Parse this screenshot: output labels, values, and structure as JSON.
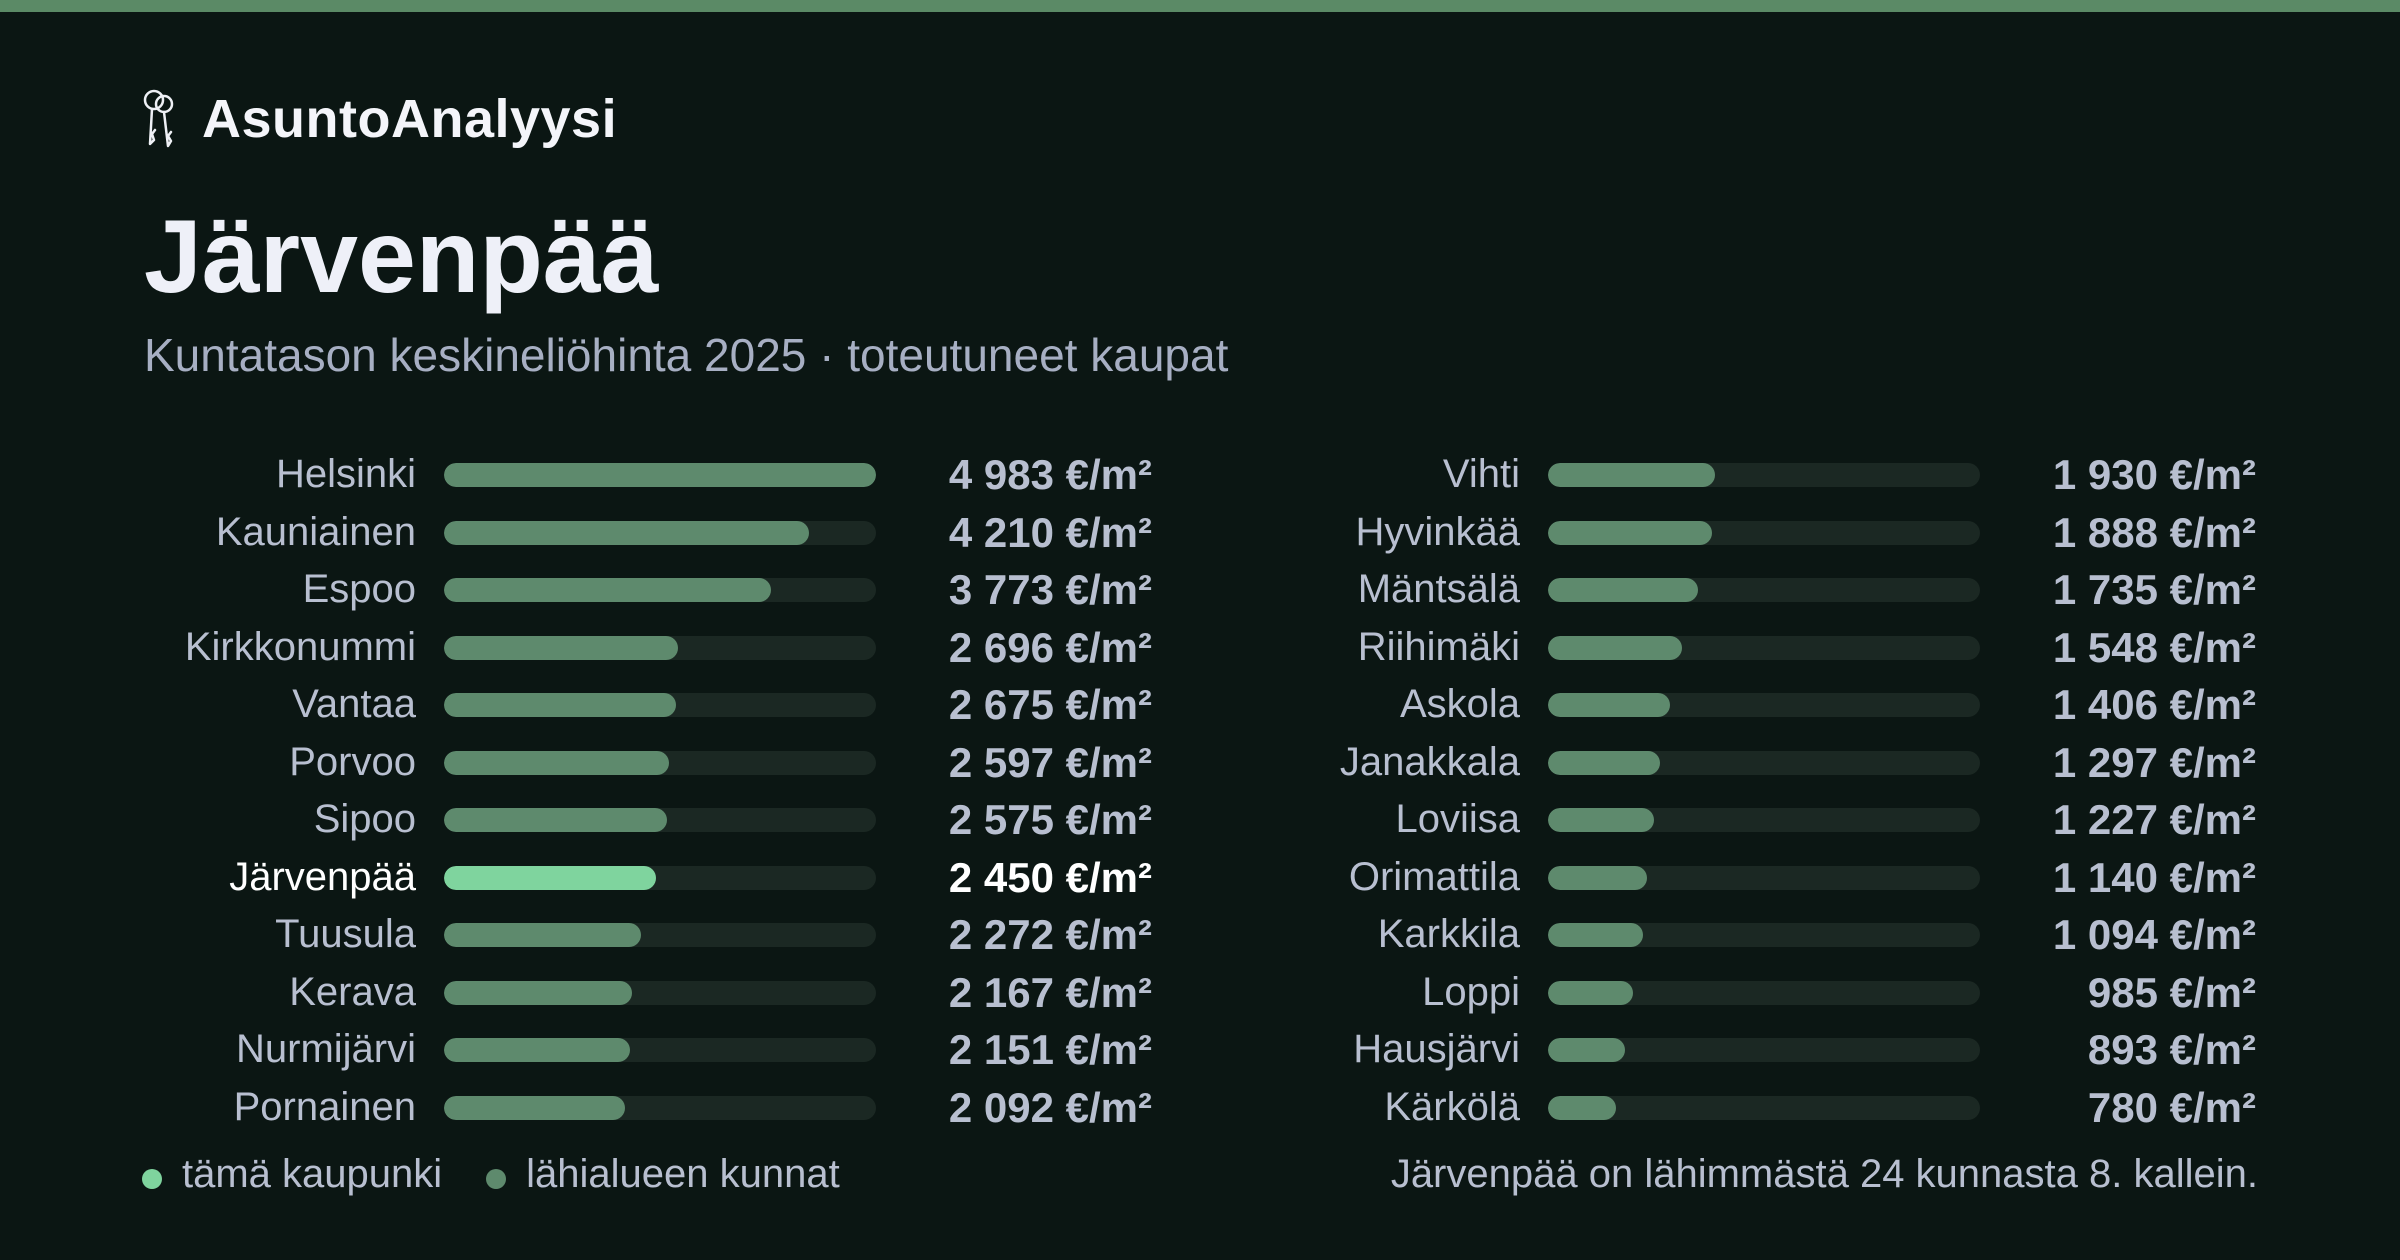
{
  "brand": {
    "name": "AsuntoAnalyysi",
    "icon": "keys-icon"
  },
  "title": "Järvenpää",
  "subtitle": "Kuntatason keskineliöhinta 2025 · toteutuneet kaupat",
  "colors": {
    "accent": "#5b8a66",
    "highlight": "#7fd49e",
    "bar": "#5e8a6d",
    "track": "#1b2823",
    "background": "#0b1613"
  },
  "legend": {
    "this_city": "tämä kaupunki",
    "nearby": "lähialueen kunnat"
  },
  "footnote": "Järvenpää on lähimmästä 24 kunnasta 8. kallein.",
  "chart_data": {
    "type": "bar",
    "orientation": "horizontal",
    "unit": "€/m²",
    "xlim": [
      0,
      4983
    ],
    "highlight": "Järvenpää",
    "categories": [
      "Helsinki",
      "Kauniainen",
      "Espoo",
      "Kirkkonummi",
      "Vantaa",
      "Porvoo",
      "Sipoo",
      "Järvenpää",
      "Tuusula",
      "Kerava",
      "Nurmijärvi",
      "Pornainen",
      "Vihti",
      "Hyvinkää",
      "Mäntsälä",
      "Riihimäki",
      "Askola",
      "Janakkala",
      "Loviisa",
      "Orimattila",
      "Karkkila",
      "Loppi",
      "Hausjärvi",
      "Kärkölä"
    ],
    "values": [
      4983,
      4210,
      3773,
      2696,
      2675,
      2597,
      2575,
      2450,
      2272,
      2167,
      2151,
      2092,
      1930,
      1888,
      1735,
      1548,
      1406,
      1297,
      1227,
      1140,
      1094,
      985,
      893,
      780
    ],
    "labels": [
      "4 983 €/m²",
      "4 210 €/m²",
      "3 773 €/m²",
      "2 696 €/m²",
      "2 675 €/m²",
      "2 597 €/m²",
      "2 575 €/m²",
      "2 450 €/m²",
      "2 272 €/m²",
      "2 167 €/m²",
      "2 151 €/m²",
      "2 092 €/m²",
      "1 930 €/m²",
      "1 888 €/m²",
      "1 735 €/m²",
      "1 548 €/m²",
      "1 406 €/m²",
      "1 297 €/m²",
      "1 227 €/m²",
      "1 140 €/m²",
      "1 094 €/m²",
      "985 €/m²",
      "893 €/m²",
      "780 €/m²"
    ]
  }
}
